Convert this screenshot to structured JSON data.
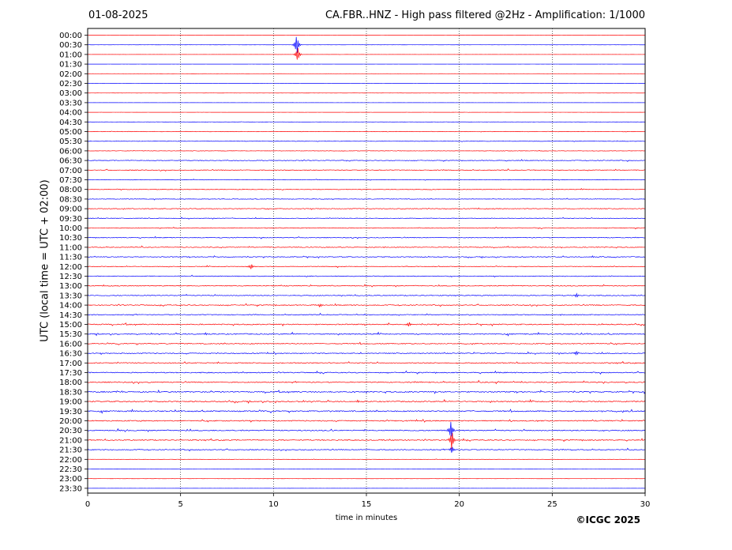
{
  "header": {
    "date": "01-08-2025",
    "title": "CA.FBR..HNZ - High pass filtered @2Hz - Amplification: 1/1000"
  },
  "footer": {
    "copyright": "©ICGC 2025"
  },
  "chart_data": {
    "type": "line",
    "xlabel": "time in minutes",
    "ylabel": "UTC (local time = UTC + 02:00)",
    "xlim": [
      0,
      30
    ],
    "xticks": [
      0,
      5,
      10,
      15,
      20,
      25,
      30
    ],
    "grid": "x dotted",
    "colors": {
      "even_row": "#ff0000",
      "odd_row": "#0000ff",
      "frame": "#000000"
    },
    "rows": [
      "00:00",
      "00:30",
      "01:00",
      "01:30",
      "02:00",
      "02:30",
      "03:00",
      "03:30",
      "04:00",
      "04:30",
      "05:00",
      "05:30",
      "06:00",
      "06:30",
      "07:00",
      "07:30",
      "08:00",
      "08:30",
      "09:00",
      "09:30",
      "10:00",
      "10:30",
      "11:00",
      "11:30",
      "12:00",
      "12:30",
      "13:00",
      "13:30",
      "14:00",
      "14:30",
      "15:00",
      "15:30",
      "16:00",
      "16:30",
      "17:00",
      "17:30",
      "18:00",
      "18:30",
      "19:00",
      "19:30",
      "20:00",
      "20:30",
      "21:00",
      "21:30",
      "22:00",
      "22:30",
      "23:00",
      "23:30"
    ],
    "noise_level": [
      0.1,
      0.1,
      0.15,
      0.1,
      0.1,
      0.1,
      0.1,
      0.1,
      0.15,
      0.3,
      0.6,
      0.5,
      0.5,
      0.8,
      0.9,
      0.6,
      0.7,
      0.7,
      0.9,
      0.8,
      0.9,
      0.9,
      0.9,
      1.0,
      0.8,
      0.9,
      1.0,
      1.0,
      1.1,
      1.0,
      1.3,
      1.3,
      1.1,
      1.1,
      1.2,
      1.2,
      1.3,
      1.4,
      1.4,
      1.5,
      1.3,
      1.3,
      1.2,
      1.0,
      0.3,
      0.15,
      0.1,
      0.1
    ],
    "events": [
      {
        "row": "00:30",
        "minute": 11.25,
        "amplitude": 2.2,
        "label": "spike"
      },
      {
        "row": "01:00",
        "minute": 11.3,
        "amplitude": 1.6,
        "label": "spike"
      },
      {
        "row": "12:00",
        "minute": 8.8,
        "amplitude": 0.6,
        "label": "spike"
      },
      {
        "row": "13:30",
        "minute": 26.3,
        "amplitude": 0.5,
        "label": "spike"
      },
      {
        "row": "14:00",
        "minute": 12.5,
        "amplitude": 0.45,
        "label": "spike"
      },
      {
        "row": "15:00",
        "minute": 17.3,
        "amplitude": 0.5,
        "label": "spike"
      },
      {
        "row": "16:30",
        "minute": 26.3,
        "amplitude": 0.45,
        "label": "spike"
      },
      {
        "row": "20:30",
        "minute": 19.55,
        "amplitude": 2.0,
        "label": "spike"
      },
      {
        "row": "21:00",
        "minute": 19.6,
        "amplitude": 2.2,
        "label": "spike"
      },
      {
        "row": "21:30",
        "minute": 19.6,
        "amplitude": 0.8,
        "label": "spike"
      }
    ]
  }
}
